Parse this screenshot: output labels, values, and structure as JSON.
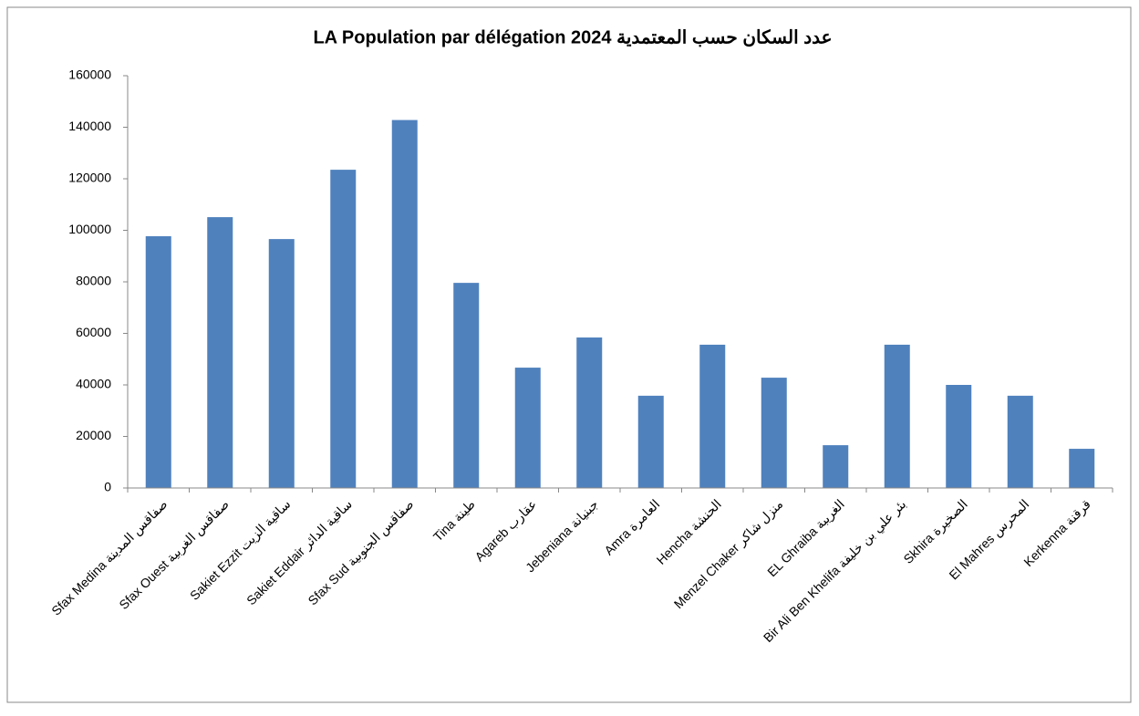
{
  "chart_data": {
    "type": "bar",
    "title": "LA Population par délégation   2024  عدد السكان حسب المعتمدية",
    "categories": [
      "Sfax Medina  صفاقس المدينة",
      "Sfax Ouest  صفاقس الغربية",
      "Sakiet Ezzit  ساقية الزيت",
      "Sakiet Eddair  ساقية الدائر",
      "Sfax Sud  صفاقس الجنوبية",
      "Tina  طينة",
      "Agareb  عقارب",
      "Jebeniana  جبنيانة",
      "Amra  العامرة",
      "Hencha  الحنشة",
      "Menzel Chaker  منزل شاكر",
      "EL Ghraiba  الغريبة",
      "Bir Ali Ben Khelifa  بئر علي بن خليفة",
      "Skhira  الصخيرة",
      "El Mahres  المحرس",
      "Kerkenna  قرقنة"
    ],
    "values": [
      97700,
      105100,
      96600,
      123500,
      142800,
      79600,
      46700,
      58400,
      35800,
      55600,
      42800,
      16600,
      55600,
      40000,
      35800,
      15200
    ],
    "color": "#4f81bd",
    "ylim": [
      0,
      160000
    ],
    "yticks": [
      0,
      20000,
      40000,
      60000,
      80000,
      100000,
      120000,
      140000,
      160000
    ],
    "grid": false
  }
}
